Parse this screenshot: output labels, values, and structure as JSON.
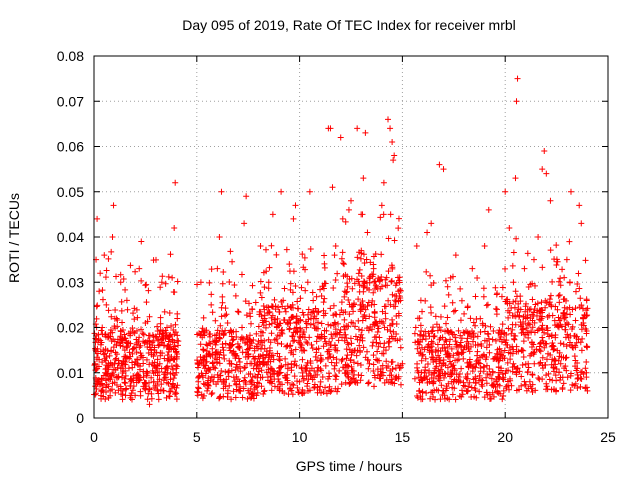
{
  "chart_data": {
    "type": "scatter",
    "title": "Day 095 of 2019, Rate Of TEC Index for receiver mrbl",
    "xlabel": "GPS time / hours",
    "ylabel": "ROTI / TECUs",
    "xlim": [
      0,
      25
    ],
    "ylim": [
      0,
      0.08
    ],
    "grid": true,
    "marker": "+",
    "x_ticks": [
      0,
      5,
      10,
      15,
      20,
      25
    ],
    "x_tick_labels": [
      "0",
      "5",
      "10",
      "15",
      "20",
      "25"
    ],
    "y_ticks": [
      0,
      0.01,
      0.02,
      0.03,
      0.04,
      0.05,
      0.06,
      0.07,
      0.08
    ],
    "y_tick_labels": [
      "0",
      "0.01",
      "0.02",
      "0.03",
      "0.04",
      "0.05",
      "0.06",
      "0.07",
      "0.08"
    ],
    "color": "#ff0000",
    "data_gaps_hours": [
      [
        4.1,
        5.0
      ],
      [
        15.0,
        15.6
      ]
    ],
    "series": [
      {
        "name": "ROTI",
        "points": [
          [
            0.05,
            0.012
          ],
          [
            0.1,
            0.035
          ],
          [
            0.15,
            0.044
          ],
          [
            0.2,
            0.008
          ],
          [
            0.25,
            0.028
          ],
          [
            0.3,
            0.032
          ],
          [
            0.35,
            0.006
          ],
          [
            0.4,
            0.02
          ],
          [
            0.45,
            0.015
          ],
          [
            0.5,
            0.036
          ],
          [
            0.55,
            0.01
          ],
          [
            0.6,
            0.025
          ],
          [
            0.7,
            0.007
          ],
          [
            0.8,
            0.018
          ],
          [
            0.9,
            0.04
          ],
          [
            0.95,
            0.047
          ],
          [
            1.0,
            0.012
          ],
          [
            1.1,
            0.022
          ],
          [
            1.2,
            0.009
          ],
          [
            1.3,
            0.03
          ],
          [
            1.4,
            0.006
          ],
          [
            1.5,
            0.015
          ],
          [
            1.6,
            0.026
          ],
          [
            1.7,
            0.011
          ],
          [
            1.8,
            0.008
          ],
          [
            1.9,
            0.019
          ],
          [
            2.0,
            0.005
          ],
          [
            2.1,
            0.013
          ],
          [
            2.2,
            0.033
          ],
          [
            2.3,
            0.039
          ],
          [
            2.4,
            0.007
          ],
          [
            2.5,
            0.021
          ],
          [
            2.6,
            0.01
          ],
          [
            2.7,
            0.003
          ],
          [
            2.8,
            0.014
          ],
          [
            2.9,
            0.008
          ],
          [
            3.0,
            0.018
          ],
          [
            3.1,
            0.006
          ],
          [
            3.2,
            0.012
          ],
          [
            3.3,
            0.03
          ],
          [
            3.4,
            0.016
          ],
          [
            3.5,
            0.009
          ],
          [
            3.6,
            0.011
          ],
          [
            3.7,
            0.013
          ],
          [
            3.8,
            0.031
          ],
          [
            3.9,
            0.042
          ],
          [
            3.95,
            0.052
          ],
          [
            4.0,
            0.01
          ],
          [
            4.05,
            0.022
          ],
          [
            4.1,
            0.017
          ],
          [
            5.05,
            0.005
          ],
          [
            5.1,
            0.012
          ],
          [
            5.2,
            0.03
          ],
          [
            5.3,
            0.009
          ],
          [
            5.4,
            0.019
          ],
          [
            5.5,
            0.006
          ],
          [
            5.6,
            0.014
          ],
          [
            5.7,
            0.025
          ],
          [
            5.8,
            0.008
          ],
          [
            5.9,
            0.011
          ],
          [
            6.0,
            0.033
          ],
          [
            6.1,
            0.04
          ],
          [
            6.2,
            0.05
          ],
          [
            6.3,
            0.015
          ],
          [
            6.4,
            0.007
          ],
          [
            6.5,
            0.021
          ],
          [
            6.6,
            0.012
          ],
          [
            6.7,
            0.018
          ],
          [
            6.8,
            0.009
          ],
          [
            6.9,
            0.027
          ],
          [
            7.0,
            0.011
          ],
          [
            7.1,
            0.006
          ],
          [
            7.2,
            0.02
          ],
          [
            7.3,
            0.043
          ],
          [
            7.4,
            0.049
          ],
          [
            7.5,
            0.014
          ],
          [
            7.6,
            0.008
          ],
          [
            7.7,
            0.024
          ],
          [
            7.8,
            0.012
          ],
          [
            7.9,
            0.005
          ],
          [
            8.0,
            0.017
          ],
          [
            8.1,
            0.038
          ],
          [
            8.2,
            0.009
          ],
          [
            8.3,
            0.022
          ],
          [
            8.4,
            0.014
          ],
          [
            8.5,
            0.03
          ],
          [
            8.6,
            0.011
          ],
          [
            8.7,
            0.045
          ],
          [
            8.8,
            0.007
          ],
          [
            8.9,
            0.02
          ],
          [
            9.0,
            0.013
          ],
          [
            9.1,
            0.05
          ],
          [
            9.2,
            0.026
          ],
          [
            9.3,
            0.009
          ],
          [
            9.4,
            0.016
          ],
          [
            9.5,
            0.034
          ],
          [
            9.6,
            0.012
          ],
          [
            9.7,
            0.044
          ],
          [
            9.8,
            0.047
          ],
          [
            9.9,
            0.019
          ],
          [
            10.0,
            0.008
          ],
          [
            10.2,
            0.015
          ],
          [
            10.4,
            0.03
          ],
          [
            10.5,
            0.05
          ],
          [
            10.6,
            0.011
          ],
          [
            10.8,
            0.022
          ],
          [
            11.0,
            0.007
          ],
          [
            11.2,
            0.018
          ],
          [
            11.4,
            0.064
          ],
          [
            11.5,
            0.064
          ],
          [
            11.6,
            0.051
          ],
          [
            11.7,
            0.036
          ],
          [
            11.8,
            0.013
          ],
          [
            12.0,
            0.062
          ],
          [
            12.1,
            0.044
          ],
          [
            12.2,
            0.028
          ],
          [
            12.3,
            0.01
          ],
          [
            12.4,
            0.046
          ],
          [
            12.5,
            0.048
          ],
          [
            12.6,
            0.021
          ],
          [
            12.8,
            0.064
          ],
          [
            12.9,
            0.016
          ],
          [
            13.0,
            0.037
          ],
          [
            13.1,
            0.053
          ],
          [
            13.2,
            0.063
          ],
          [
            13.3,
            0.041
          ],
          [
            13.4,
            0.012
          ],
          [
            13.5,
            0.025
          ],
          [
            13.6,
            0.033
          ],
          [
            13.8,
            0.019
          ],
          [
            14.0,
            0.047
          ],
          [
            14.1,
            0.052
          ],
          [
            14.2,
            0.015
          ],
          [
            14.3,
            0.066
          ],
          [
            14.4,
            0.064
          ],
          [
            14.5,
            0.061
          ],
          [
            14.55,
            0.057
          ],
          [
            14.6,
            0.058
          ],
          [
            14.8,
            0.028
          ],
          [
            15.0,
            0.012
          ],
          [
            15.65,
            0.02
          ],
          [
            15.7,
            0.038
          ],
          [
            15.8,
            0.009
          ],
          [
            15.9,
            0.026
          ],
          [
            16.0,
            0.014
          ],
          [
            16.2,
            0.041
          ],
          [
            16.4,
            0.043
          ],
          [
            16.6,
            0.011
          ],
          [
            16.8,
            0.056
          ],
          [
            17.0,
            0.055
          ],
          [
            17.2,
            0.029
          ],
          [
            17.4,
            0.008
          ],
          [
            17.6,
            0.036
          ],
          [
            17.8,
            0.016
          ],
          [
            18.0,
            0.023
          ],
          [
            18.2,
            0.007
          ],
          [
            18.4,
            0.033
          ],
          [
            18.6,
            0.012
          ],
          [
            18.8,
            0.019
          ],
          [
            19.0,
            0.038
          ],
          [
            19.2,
            0.046
          ],
          [
            19.4,
            0.01
          ],
          [
            19.6,
            0.024
          ],
          [
            19.8,
            0.014
          ],
          [
            20.0,
            0.05
          ],
          [
            20.2,
            0.042
          ],
          [
            20.4,
            0.03
          ],
          [
            20.5,
            0.053
          ],
          [
            20.55,
            0.07
          ],
          [
            20.6,
            0.075
          ],
          [
            20.8,
            0.015
          ],
          [
            21.0,
            0.022
          ],
          [
            21.2,
            0.008
          ],
          [
            21.4,
            0.035
          ],
          [
            21.6,
            0.04
          ],
          [
            21.8,
            0.055
          ],
          [
            21.9,
            0.059
          ],
          [
            22.0,
            0.054
          ],
          [
            22.2,
            0.048
          ],
          [
            22.4,
            0.013
          ],
          [
            22.6,
            0.027
          ],
          [
            22.8,
            0.009
          ],
          [
            23.0,
            0.035
          ],
          [
            23.2,
            0.05
          ],
          [
            23.4,
            0.016
          ],
          [
            23.6,
            0.047
          ],
          [
            23.7,
            0.043
          ],
          [
            23.8,
            0.021
          ],
          [
            23.9,
            0.011
          ],
          [
            24.0,
            0.006
          ]
        ]
      }
    ]
  }
}
